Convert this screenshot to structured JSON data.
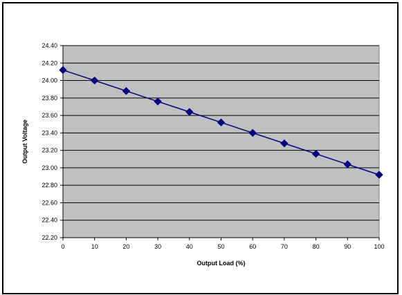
{
  "chart_data": {
    "type": "line",
    "title": "",
    "xlabel": "Output Load (%)",
    "ylabel": "Output Voltage",
    "x": [
      0,
      10,
      20,
      30,
      40,
      50,
      60,
      70,
      80,
      90,
      100
    ],
    "series": [
      {
        "values": [
          24.12,
          24.0,
          23.88,
          23.76,
          23.64,
          23.52,
          23.4,
          23.28,
          23.16,
          23.04,
          22.92
        ],
        "color": "#000080",
        "marker": "diamond"
      }
    ],
    "xlim": [
      0,
      100
    ],
    "ylim": [
      22.2,
      24.4
    ],
    "xticks": [
      "0",
      "10",
      "20",
      "30",
      "40",
      "50",
      "60",
      "70",
      "80",
      "90",
      "100"
    ],
    "yticks": [
      "22.20",
      "22.40",
      "22.60",
      "22.80",
      "23.00",
      "23.20",
      "23.40",
      "23.60",
      "23.80",
      "24.00",
      "24.20",
      "24.40"
    ],
    "grid": "horizontal",
    "legend": "none",
    "plot_background": "#c0c0c0",
    "gridline_color": "#000000"
  }
}
